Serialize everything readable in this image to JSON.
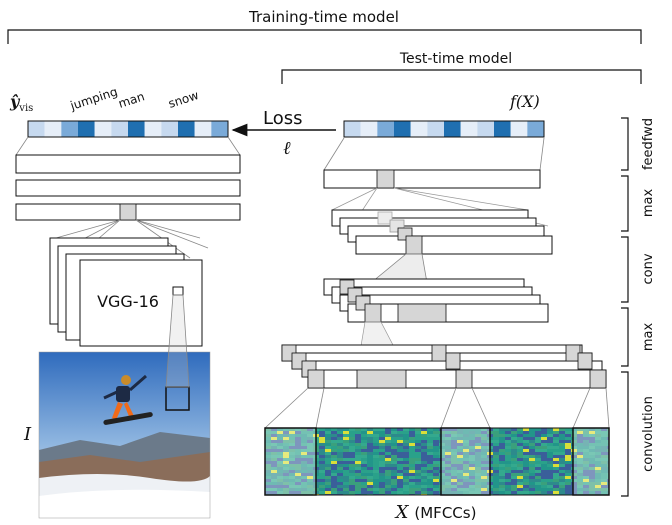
{
  "titles": {
    "training_model": "Training-time model",
    "test_model": "Test-time model"
  },
  "left_branch": {
    "output_symbol": "ŷ",
    "output_subscript": "vis",
    "word_labels": [
      "jumping",
      "man",
      "snow"
    ],
    "network_label": "VGG-16",
    "image_symbol": "I"
  },
  "loss": {
    "label": "Loss",
    "symbol": "ℓ"
  },
  "right_branch": {
    "output_label": "f(X)",
    "input_symbol": "X",
    "input_caption": "(MFCCs)"
  },
  "stages": {
    "feedfwd": "feedfwd",
    "max_top": "max",
    "conv": "conv",
    "max_bottom": "max",
    "convolution": "convolution"
  },
  "colors": {
    "vector_dark": "#1f6fb0",
    "vector_mid": "#7aaad8",
    "vector_light": "#c6d9ef",
    "vector_pale": "#e6eef8",
    "filter_gray": "#d6d6d6",
    "spectrogram_base": "#2aa18a",
    "spectrogram_yellow": "#d9df3a",
    "spectrogram_blue": "#3a5f9a",
    "sky_top": "#3a78c6",
    "snow": "#eef1f5"
  }
}
